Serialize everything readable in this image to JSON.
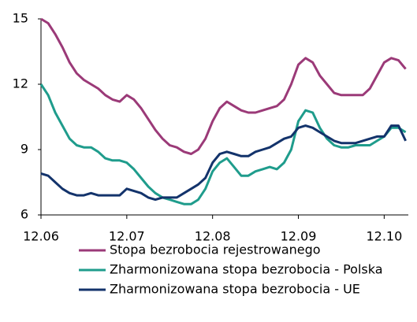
{
  "chart_data": {
    "type": "line",
    "categories": [
      "12.06",
      null,
      null,
      null,
      null,
      null,
      null,
      null,
      null,
      null,
      null,
      null,
      "12.07",
      null,
      null,
      null,
      null,
      null,
      null,
      null,
      null,
      null,
      null,
      null,
      "12.08",
      null,
      null,
      null,
      null,
      null,
      null,
      null,
      null,
      null,
      null,
      null,
      "12.09",
      null,
      null,
      null,
      null,
      null,
      null,
      null,
      null,
      null,
      null,
      null,
      "12.10",
      null,
      null,
      null
    ],
    "series": [
      {
        "name": "Stopa bezrobocia rejestrowanego",
        "color": "#9b3a78",
        "values": [
          15.0,
          14.8,
          14.3,
          13.7,
          13.0,
          12.5,
          12.2,
          12.0,
          11.8,
          11.5,
          11.3,
          11.2,
          11.5,
          11.3,
          10.9,
          10.4,
          9.9,
          9.5,
          9.2,
          9.1,
          8.9,
          8.8,
          9.0,
          9.5,
          10.3,
          10.9,
          11.2,
          11.0,
          10.8,
          10.7,
          10.7,
          10.8,
          10.9,
          11.0,
          11.3,
          12.0,
          12.9,
          13.2,
          13.0,
          12.4,
          12.0,
          11.6,
          11.5,
          11.5,
          11.5,
          11.5,
          11.8,
          12.4,
          13.0,
          13.2,
          13.1,
          12.7
        ]
      },
      {
        "name": "Zharmonizowana stopa bezrobocia - Polska",
        "color": "#1f9c8c",
        "values": [
          12.0,
          11.5,
          10.7,
          10.1,
          9.5,
          9.2,
          9.1,
          9.1,
          8.9,
          8.6,
          8.5,
          8.5,
          8.4,
          8.1,
          7.7,
          7.3,
          7.0,
          6.8,
          6.7,
          6.6,
          6.5,
          6.5,
          6.7,
          7.2,
          8.0,
          8.4,
          8.6,
          8.2,
          7.8,
          7.8,
          8.0,
          8.1,
          8.2,
          8.1,
          8.4,
          9.0,
          10.3,
          10.8,
          10.7,
          10.0,
          9.5,
          9.2,
          9.1,
          9.1,
          9.2,
          9.2,
          9.2,
          9.4,
          9.6,
          10.0,
          10.0,
          9.8
        ]
      },
      {
        "name": "Zharmonizowana stopa bezrobocia - UE",
        "color": "#13336b",
        "values": [
          7.9,
          7.8,
          7.5,
          7.2,
          7.0,
          6.9,
          6.9,
          7.0,
          6.9,
          6.9,
          6.9,
          6.9,
          7.2,
          7.1,
          7.0,
          6.8,
          6.7,
          6.8,
          6.8,
          6.8,
          7.0,
          7.2,
          7.4,
          7.7,
          8.4,
          8.8,
          8.9,
          8.8,
          8.7,
          8.7,
          8.9,
          9.0,
          9.1,
          9.3,
          9.5,
          9.6,
          10.0,
          10.1,
          10.0,
          9.8,
          9.6,
          9.4,
          9.3,
          9.3,
          9.3,
          9.4,
          9.5,
          9.6,
          9.6,
          10.1,
          10.1,
          9.4
        ]
      }
    ],
    "ylim": [
      6,
      15
    ],
    "yticks": [
      6,
      9,
      12,
      15
    ],
    "grid": false,
    "legend": "bottom"
  }
}
